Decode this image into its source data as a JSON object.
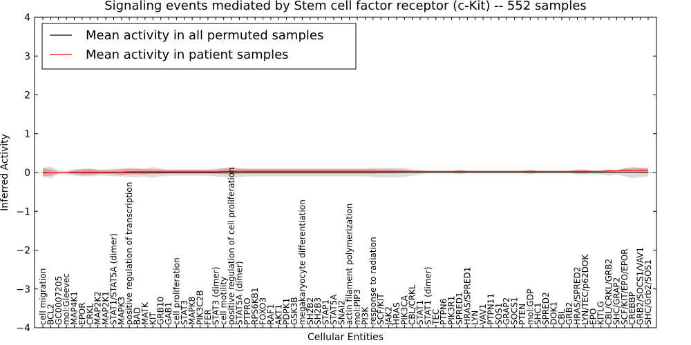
{
  "chart_data": {
    "type": "line",
    "title": "Signaling events mediated by Stem cell factor receptor (c-Kit) -- 552 samples",
    "xlabel": "Cellular Entities",
    "ylabel": "Inferred Activity",
    "ylim": [
      -4,
      4
    ],
    "yticks": [
      "4",
      "3",
      "2",
      "1",
      "0",
      "−1",
      "−2",
      "−3",
      "−4"
    ],
    "ytick_values": [
      4,
      3,
      2,
      1,
      0,
      -1,
      -2,
      -3,
      -4
    ],
    "grid": false,
    "legend_position": "top-left",
    "categories": [
      "cell migration",
      "BCL2",
      "GC0007205",
      "mol:Gleevec",
      "MAP4K1",
      "EPOR",
      "CRKL",
      "MAP2K2",
      "MAP2K1",
      "STAT1/STAT5A (dimer)",
      "MAPK3",
      "positive regulation of transcription",
      "BAD",
      "MATK",
      "KIT",
      "GRB10",
      "GAB1",
      "cell proliferation",
      "STAT3",
      "MAPK8",
      "PIK3C2B",
      "FER",
      "STAT3 (dimer)",
      "cell motility",
      "positive regulation of cell proliferation",
      "STAT5A (dimer)",
      "PTPRO",
      "RPS6KB1",
      "FOXO3",
      "RAF1",
      "AKT1",
      "PDPK1",
      "GSK3B",
      "megakaryocyte differentiation",
      "SH2B2",
      "SH2B3",
      "STAP1",
      "STAT5A",
      "SNAI2",
      "actin filament polymerization",
      "mol:PIP3",
      "PI3K",
      "response to radiation",
      "SCF/KIT",
      "JAK2",
      "HRAS",
      "PIK3CA",
      "CBL/CRKL",
      "STAT1",
      "STAT1 (dimer)",
      "TEC",
      "PTPN6",
      "PIK3R1",
      "SPRED1",
      "HRAS/SPRED1",
      "LYN",
      "VAV1",
      "PTPN11",
      "SOS1",
      "GRAP2",
      "SOCS1",
      "PTEN",
      "mol:GDP",
      "SHC1",
      "SPRED2",
      "DOK1",
      "CBL",
      "GRB2",
      "HRAS/SPRED2",
      "LYN/TEC/p62DOK",
      "EPO",
      "KITLG",
      "CBL/CRKL/GRB2",
      "SHC/GRAP2",
      "SCF/KIT/EPO/EPOR",
      "CREBBP",
      "GRB2/SOCS1/VAV1",
      "SHC/Grb2/SOS1"
    ],
    "series": [
      {
        "name": "Mean activity in all permuted samples",
        "color": "#000000",
        "values": [
          0.0,
          0.0,
          0.0,
          0.0,
          0.0,
          0.0,
          0.0,
          0.0,
          0.0,
          0.0,
          0.0,
          0.0,
          0.0,
          0.0,
          0.0,
          0.0,
          0.0,
          0.0,
          0.0,
          0.0,
          0.0,
          0.0,
          0.0,
          0.0,
          0.0,
          0.0,
          0.0,
          0.0,
          0.0,
          0.0,
          0.0,
          0.0,
          0.0,
          0.0,
          0.0,
          0.0,
          0.0,
          0.0,
          0.0,
          0.0,
          0.0,
          0.0,
          0.0,
          0.0,
          0.0,
          0.0,
          0.0,
          0.0,
          0.0,
          0.0,
          0.0,
          0.0,
          0.0,
          0.0,
          0.0,
          0.0,
          0.0,
          0.0,
          0.0,
          0.0,
          0.0,
          0.0,
          0.0,
          0.0,
          0.0,
          0.0,
          0.0,
          0.0,
          0.0,
          0.0,
          0.0,
          0.0,
          0.0,
          0.0,
          0.0,
          0.0,
          0.0,
          0.0
        ],
        "band": [
          0.12,
          0.15,
          0.05,
          0.05,
          0.08,
          0.1,
          0.1,
          0.08,
          0.08,
          0.1,
          0.1,
          0.12,
          0.12,
          0.1,
          0.14,
          0.1,
          0.08,
          0.08,
          0.08,
          0.08,
          0.08,
          0.08,
          0.1,
          0.12,
          0.14,
          0.12,
          0.1,
          0.1,
          0.1,
          0.1,
          0.1,
          0.1,
          0.1,
          0.1,
          0.1,
          0.1,
          0.1,
          0.1,
          0.1,
          0.1,
          0.1,
          0.1,
          0.12,
          0.12,
          0.12,
          0.12,
          0.12,
          0.08,
          0.05,
          0.02,
          0.02,
          0.02,
          0.02,
          0.05,
          0.02,
          0.02,
          0.02,
          0.02,
          0.02,
          0.02,
          0.02,
          0.02,
          0.05,
          0.02,
          0.02,
          0.02,
          0.02,
          0.02,
          0.05,
          0.05,
          0.05,
          0.05,
          0.08,
          0.05,
          0.1,
          0.15,
          0.12,
          0.1
        ]
      },
      {
        "name": "Mean activity in patient samples",
        "color": "#ff0000",
        "values": [
          0.01,
          0.0,
          0.0,
          0.0,
          0.01,
          0.01,
          0.01,
          0.01,
          0.01,
          0.01,
          0.01,
          0.02,
          0.02,
          0.02,
          0.02,
          0.02,
          0.02,
          0.02,
          0.02,
          0.02,
          0.02,
          0.02,
          0.02,
          0.03,
          0.03,
          0.03,
          0.03,
          0.03,
          0.03,
          0.03,
          0.03,
          0.03,
          0.03,
          0.03,
          0.03,
          0.03,
          0.03,
          0.03,
          0.03,
          0.03,
          0.03,
          0.03,
          0.03,
          0.03,
          0.03,
          0.03,
          0.03,
          0.03,
          0.03,
          0.03,
          0.03,
          0.03,
          0.03,
          0.03,
          0.03,
          0.03,
          0.03,
          0.03,
          0.03,
          0.03,
          0.03,
          0.03,
          0.03,
          0.03,
          0.03,
          0.03,
          0.03,
          0.03,
          0.03,
          0.03,
          0.03,
          0.03,
          0.04,
          0.04,
          0.05,
          0.05,
          0.05,
          0.05
        ],
        "band": [
          0.1,
          0.08,
          0.02,
          0.02,
          0.05,
          0.07,
          0.08,
          0.05,
          0.05,
          0.05,
          0.08,
          0.07,
          0.07,
          0.07,
          0.06,
          0.06,
          0.05,
          0.05,
          0.05,
          0.05,
          0.05,
          0.05,
          0.05,
          0.07,
          0.08,
          0.06,
          0.06,
          0.06,
          0.06,
          0.06,
          0.06,
          0.06,
          0.06,
          0.06,
          0.06,
          0.06,
          0.06,
          0.06,
          0.06,
          0.06,
          0.06,
          0.06,
          0.06,
          0.05,
          0.05,
          0.05,
          0.04,
          0.02,
          0.02,
          0.01,
          0.01,
          0.01,
          0.01,
          0.04,
          0.01,
          0.01,
          0.01,
          0.01,
          0.01,
          0.01,
          0.01,
          0.01,
          0.04,
          0.01,
          0.01,
          0.01,
          0.01,
          0.01,
          0.05,
          0.05,
          0.01,
          0.01,
          0.04,
          0.02,
          0.06,
          0.05,
          0.07,
          0.06
        ]
      }
    ]
  }
}
